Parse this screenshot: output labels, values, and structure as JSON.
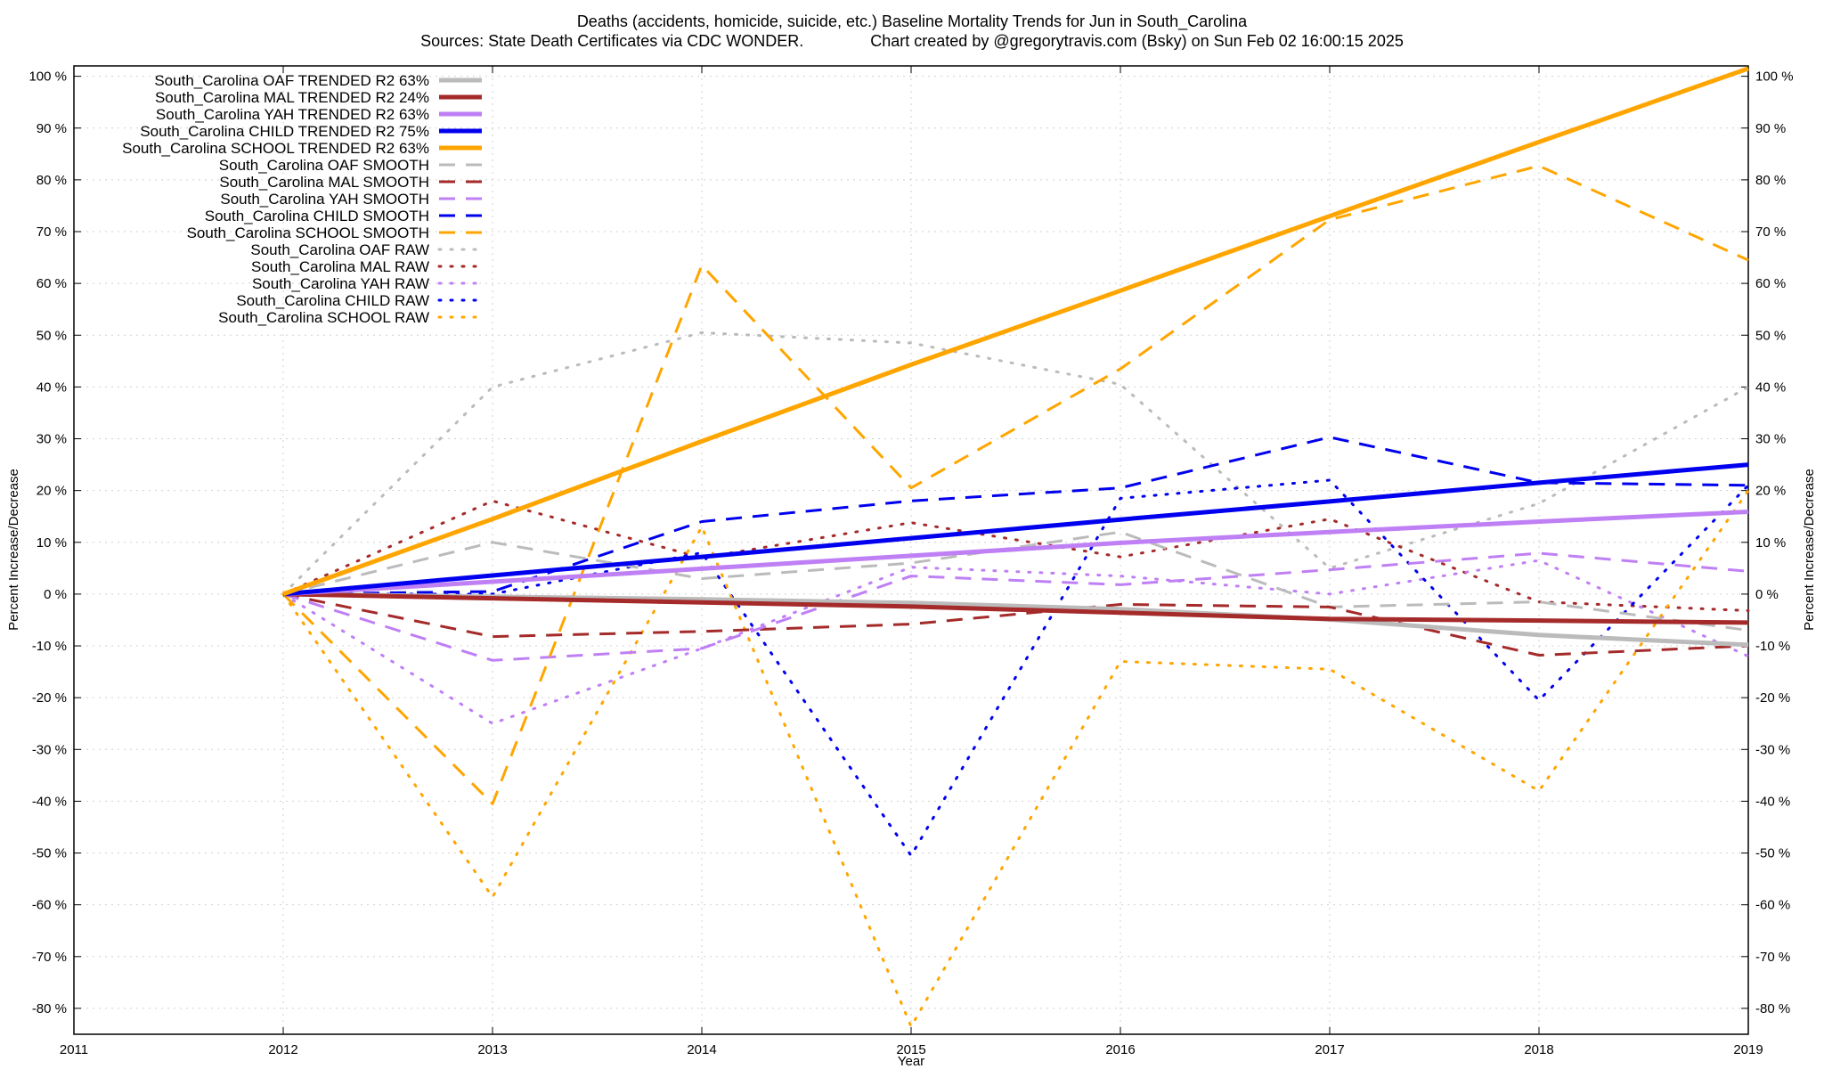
{
  "chart_data": {
    "type": "line",
    "title": "Deaths (accidents, homicide, suicide, etc.)  Baseline Mortality Trends for Jun in South_Carolina",
    "subtitle": "Sources: State Death Certificates via CDC WONDER.               Chart created by @gregorytravis.com (Bsky) on Sun Feb 02 16:00:15 2025",
    "xlabel": "Year",
    "ylabel": "Percent Increase/Decrease",
    "y2label": "Percent Increase/Decrease",
    "xlim": [
      2011,
      2019
    ],
    "ylim": [
      -85,
      102
    ],
    "x_ticks": [
      2011,
      2012,
      2013,
      2014,
      2015,
      2016,
      2017,
      2018,
      2019
    ],
    "y_ticks": [
      100,
      90,
      80,
      70,
      60,
      50,
      40,
      30,
      20,
      10,
      0,
      -10,
      -20,
      -30,
      -40,
      -50,
      -60,
      -70,
      -80
    ],
    "y_tick_suffix": " %",
    "grid": true,
    "legend_placement": "top-left",
    "x": [
      2012,
      2013,
      2014,
      2015,
      2016,
      2017,
      2018,
      2019
    ],
    "series": [
      {
        "name": "South_Carolina OAF TRENDED R2  63%",
        "color": "#bbbbbb",
        "style": "solid",
        "width": 5,
        "values": [
          0,
          -0.5,
          -1,
          -1.7,
          -2.9,
          -4.9,
          -7.9,
          -9.8
        ]
      },
      {
        "name": "South_Carolina MAL TRENDED R2  24%",
        "color": "#a52a2a",
        "style": "solid",
        "width": 5,
        "values": [
          0,
          -0.8,
          -1.6,
          -2.4,
          -3.6,
          -4.8,
          -5.1,
          -5.5
        ]
      },
      {
        "name": "South_Carolina YAH TRENDED R2  63%",
        "color": "#bf7ff5",
        "style": "solid",
        "width": 5,
        "values": [
          0,
          2.4,
          4.9,
          7.4,
          9.9,
          12.0,
          14.0,
          15.9
        ]
      },
      {
        "name": "South_Carolina CHILD TRENDED R2  75%",
        "color": "#0000ee",
        "style": "solid",
        "width": 5,
        "values": [
          0,
          3.6,
          7.2,
          10.8,
          14.4,
          17.9,
          21.5,
          25.0
        ]
      },
      {
        "name": "South_Carolina SCHOOL TRENDED R2  63%",
        "color": "#ffa500",
        "style": "solid",
        "width": 5,
        "values": [
          0,
          14.5,
          29.5,
          44.3,
          58.6,
          73.0,
          87.3,
          101.5
        ]
      },
      {
        "name": "South_Carolina OAF SMOOTH",
        "color": "#bbbbbb",
        "style": "dashed",
        "width": 3,
        "values": [
          0,
          10,
          3,
          6,
          12,
          -2.5,
          -1.5,
          -7
        ]
      },
      {
        "name": "South_Carolina MAL SMOOTH",
        "color": "#a52a2a",
        "style": "dashed",
        "width": 3,
        "values": [
          0,
          -8.2,
          -7.2,
          -5.8,
          -2,
          -2.5,
          -11.8,
          -10
        ]
      },
      {
        "name": "South_Carolina YAH SMOOTH",
        "color": "#bf7ff5",
        "style": "dashed",
        "width": 3,
        "values": [
          0,
          -12.8,
          -10.5,
          3.5,
          1.8,
          4.7,
          7.9,
          4.4
        ]
      },
      {
        "name": "South_Carolina CHILD SMOOTH",
        "color": "#0000ee",
        "style": "dashed",
        "width": 3,
        "values": [
          0,
          0.5,
          14,
          18,
          20.5,
          30.3,
          21.5,
          21
        ]
      },
      {
        "name": "South_Carolina SCHOOL SMOOTH",
        "color": "#ffa500",
        "style": "dashed",
        "width": 3,
        "values": [
          0,
          -40.5,
          63.5,
          20.5,
          43.5,
          72.3,
          82.7,
          64.5
        ]
      },
      {
        "name": "South_Carolina OAF RAW",
        "color": "#bbbbbb",
        "style": "dotted",
        "width": 3,
        "values": [
          0,
          40,
          50.5,
          48.5,
          40.5,
          5,
          17.5,
          40
        ]
      },
      {
        "name": "South_Carolina MAL RAW",
        "color": "#a52a2a",
        "style": "dotted",
        "width": 3,
        "values": [
          0,
          18,
          7,
          13.8,
          7.2,
          14.5,
          -1.5,
          -3.2
        ]
      },
      {
        "name": "South_Carolina YAH RAW",
        "color": "#bf7ff5",
        "style": "dotted",
        "width": 3,
        "values": [
          0,
          -25,
          -10.5,
          5.2,
          3.5,
          0,
          6.5,
          -12
        ]
      },
      {
        "name": "South_Carolina CHILD RAW",
        "color": "#0000ee",
        "style": "dotted",
        "width": 3,
        "values": [
          0,
          0,
          8,
          -50.5,
          18.5,
          22,
          -20.5,
          21
        ]
      },
      {
        "name": "South_Carolina SCHOOL RAW",
        "color": "#ffa500",
        "style": "dotted",
        "width": 3,
        "values": [
          0,
          -58.5,
          13,
          -83.5,
          -13,
          -14.5,
          -38,
          20
        ]
      }
    ]
  }
}
